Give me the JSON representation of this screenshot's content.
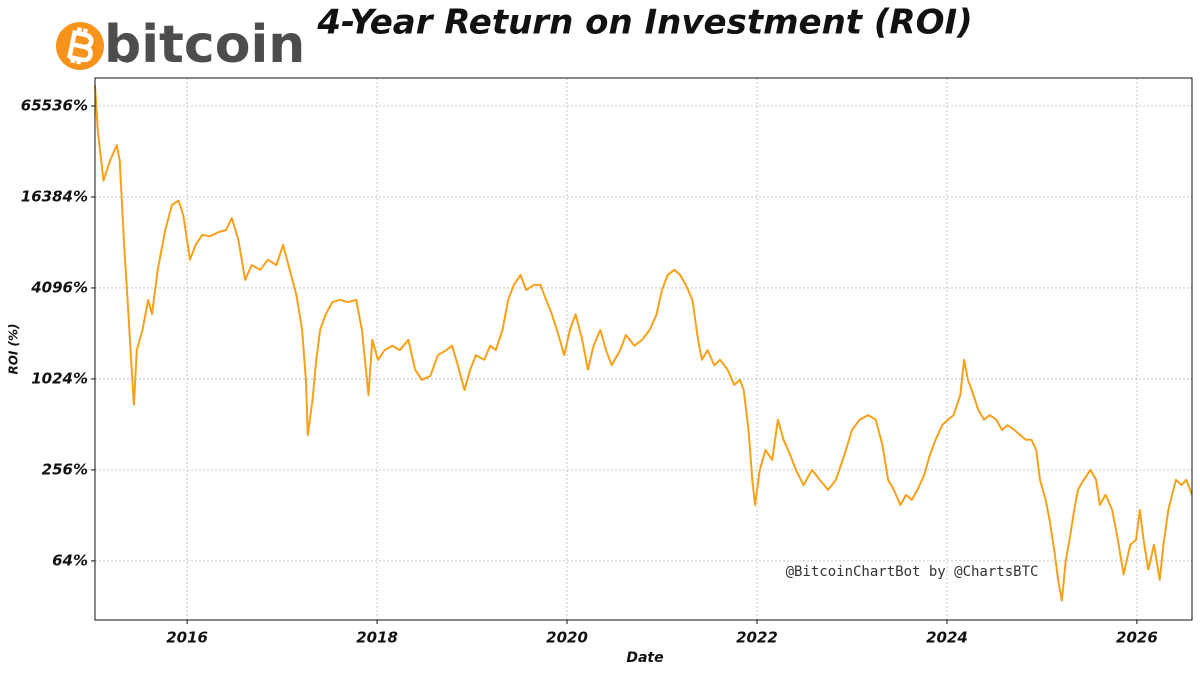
{
  "chart_data": {
    "type": "line",
    "title": "4-Year Return on Investment (ROI)",
    "logo": "bitcoin",
    "watermark": "@BitcoinChartBot by @ChartsBTC",
    "xlabel": "Date",
    "ylabel": "ROI (%)",
    "log_y": true,
    "grid": true,
    "xlim": [
      2015.03,
      2026.58
    ],
    "xticks": [
      2016,
      2018,
      2020,
      2022,
      2024,
      2026
    ],
    "ylim": [
      26,
      100400
    ],
    "yticks": [
      {
        "value": 64,
        "label": "64%"
      },
      {
        "value": 256,
        "label": "256%"
      },
      {
        "value": 1024,
        "label": "1024%"
      },
      {
        "value": 4096,
        "label": "4096%"
      },
      {
        "value": 16384,
        "label": "16384%"
      },
      {
        "value": 65536,
        "label": "65536%"
      }
    ],
    "x": [
      2015.03,
      2015.06,
      2015.12,
      2015.19,
      2015.26,
      2015.29,
      2015.34,
      2015.38,
      2015.41,
      2015.44,
      2015.47,
      2015.53,
      2015.59,
      2015.63,
      2015.69,
      2015.77,
      2015.84,
      2015.91,
      2015.96,
      2016.03,
      2016.09,
      2016.16,
      2016.24,
      2016.33,
      2016.41,
      2016.47,
      2016.54,
      2016.61,
      2016.68,
      2016.77,
      2016.85,
      2016.94,
      2017.01,
      2017.08,
      2017.15,
      2017.21,
      2017.25,
      2017.27,
      2017.32,
      2017.36,
      2017.4,
      2017.46,
      2017.53,
      2017.61,
      2017.69,
      2017.78,
      2017.84,
      2017.91,
      2017.95,
      2018.01,
      2018.08,
      2018.16,
      2018.24,
      2018.33,
      2018.4,
      2018.47,
      2018.56,
      2018.64,
      2018.73,
      2018.79,
      2018.85,
      2018.92,
      2018.98,
      2019.04,
      2019.13,
      2019.19,
      2019.25,
      2019.32,
      2019.38,
      2019.44,
      2019.51,
      2019.57,
      2019.65,
      2019.72,
      2019.78,
      2019.84,
      2019.91,
      2019.97,
      2020.03,
      2020.09,
      2020.16,
      2020.22,
      2020.28,
      2020.35,
      2020.41,
      2020.47,
      2020.56,
      2020.62,
      2020.71,
      2020.79,
      2020.87,
      2020.94,
      2021.0,
      2021.06,
      2021.13,
      2021.19,
      2021.25,
      2021.32,
      2021.38,
      2021.42,
      2021.48,
      2021.55,
      2021.61,
      2021.69,
      2021.76,
      2021.82,
      2021.86,
      2021.91,
      2021.95,
      2021.98,
      2022.03,
      2022.09,
      2022.16,
      2022.22,
      2022.28,
      2022.35,
      2022.41,
      2022.49,
      2022.58,
      2022.66,
      2022.75,
      2022.83,
      2022.92,
      2023.0,
      2023.08,
      2023.17,
      2023.25,
      2023.32,
      2023.38,
      2023.44,
      2023.51,
      2023.57,
      2023.63,
      2023.69,
      2023.76,
      2023.82,
      2023.88,
      2023.95,
      2024.01,
      2024.07,
      2024.14,
      2024.18,
      2024.22,
      2024.26,
      2024.33,
      2024.39,
      2024.45,
      2024.52,
      2024.58,
      2024.64,
      2024.71,
      2024.77,
      2024.83,
      2024.89,
      2024.94,
      2024.98,
      2025.04,
      2025.08,
      2025.13,
      2025.17,
      2025.21,
      2025.25,
      2025.29,
      2025.34,
      2025.38,
      2025.44,
      2025.51,
      2025.57,
      2025.61,
      2025.67,
      2025.74,
      2025.8,
      2025.86,
      2025.93,
      2025.99,
      2026.03,
      2026.07,
      2026.12,
      2026.18,
      2026.24,
      2026.28,
      2026.33,
      2026.37,
      2026.41,
      2026.47,
      2026.52,
      2026.58
    ],
    "series": [
      {
        "name": "ROI",
        "color": "#f7a11a",
        "values": [
          90000,
          45000,
          21000,
          28700,
          36000,
          28700,
          7300,
          2930,
          1370,
          690,
          1590,
          2160,
          3420,
          2750,
          5400,
          9900,
          14500,
          15500,
          12400,
          6300,
          7900,
          9200,
          9000,
          9600,
          9900,
          11900,
          8500,
          4640,
          5800,
          5400,
          6300,
          5800,
          7900,
          5400,
          3690,
          2160,
          1010,
          436,
          745,
          1370,
          2160,
          2750,
          3300,
          3420,
          3300,
          3420,
          2160,
          800,
          1860,
          1370,
          1590,
          1700,
          1590,
          1860,
          1180,
          1010,
          1070,
          1470,
          1590,
          1700,
          1260,
          865,
          1180,
          1470,
          1370,
          1700,
          1590,
          2160,
          3420,
          4290,
          5000,
          3970,
          4290,
          4290,
          3420,
          2750,
          2000,
          1470,
          2160,
          2750,
          1860,
          1180,
          1700,
          2160,
          1590,
          1260,
          1590,
          2000,
          1700,
          1860,
          2160,
          2710,
          3970,
          5000,
          5400,
          5000,
          4290,
          3420,
          1860,
          1370,
          1590,
          1260,
          1370,
          1180,
          935,
          1010,
          865,
          470,
          220,
          150,
          256,
          347,
          298,
          550,
          405,
          322,
          256,
          203,
          256,
          220,
          189,
          220,
          322,
          470,
          550,
          590,
          550,
          375,
          220,
          189,
          150,
          175,
          162,
          189,
          237,
          322,
          405,
          507,
          550,
          590,
          800,
          1370,
          1010,
          865,
          640,
          550,
          590,
          550,
          470,
          507,
          470,
          436,
          405,
          405,
          347,
          220,
          162,
          120,
          75,
          48,
          35,
          64,
          88,
          139,
          189,
          220,
          256,
          220,
          150,
          175,
          139,
          88,
          52,
          82,
          88,
          139,
          88,
          56,
          82,
          48,
          82,
          139,
          175,
          220,
          203,
          220,
          175
        ]
      }
    ]
  }
}
